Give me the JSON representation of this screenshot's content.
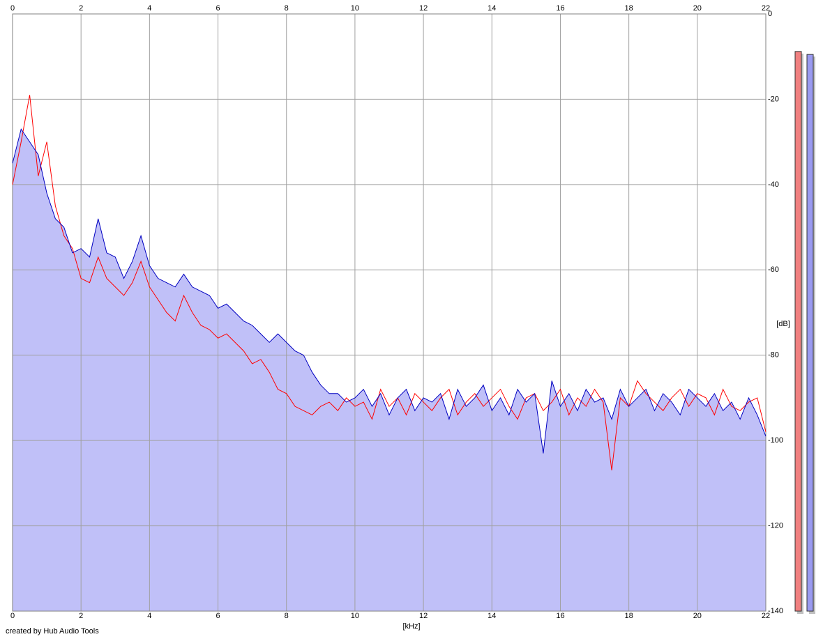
{
  "chart_data": {
    "type": "line",
    "x_label": "[kHz]",
    "y_label": "[dB]",
    "footer": "created by Hub Audio Tools",
    "xlim": [
      0,
      22
    ],
    "xticks": [
      0,
      2,
      4,
      6,
      8,
      10,
      12,
      14,
      16,
      18,
      20,
      22
    ],
    "ylim": [
      -140,
      0
    ],
    "yticks": [
      0,
      -20,
      -40,
      -60,
      -80,
      -100,
      -120,
      -140
    ],
    "grid": true,
    "area_color": "#c0c0f8",
    "x": [
      0,
      0.25,
      0.5,
      0.75,
      1,
      1.25,
      1.5,
      1.75,
      2,
      2.25,
      2.5,
      2.75,
      3,
      3.25,
      3.5,
      3.75,
      4,
      4.25,
      4.5,
      4.75,
      5,
      5.25,
      5.5,
      5.75,
      6,
      6.25,
      6.5,
      6.75,
      7,
      7.25,
      7.5,
      7.75,
      8,
      8.25,
      8.5,
      8.75,
      9,
      9.25,
      9.5,
      9.75,
      10,
      10.25,
      10.5,
      10.75,
      11,
      11.25,
      11.5,
      11.75,
      12,
      12.25,
      12.5,
      12.75,
      13,
      13.25,
      13.5,
      13.75,
      14,
      14.25,
      14.5,
      14.75,
      15,
      15.25,
      15.5,
      15.75,
      16,
      16.25,
      16.5,
      16.75,
      17,
      17.25,
      17.5,
      17.75,
      18,
      18.25,
      18.5,
      18.75,
      19,
      19.25,
      19.5,
      19.75,
      20,
      20.25,
      20.5,
      20.75,
      21,
      21.25,
      21.5,
      21.75,
      22
    ],
    "series": [
      {
        "color": "#0000c0",
        "values": [
          -35,
          -27,
          -30,
          -33,
          -42,
          -48,
          -50,
          -56,
          -55,
          -57,
          -48,
          -56,
          -57,
          -62,
          -58,
          -52,
          -59,
          -62,
          -63,
          -64,
          -61,
          -64,
          -65,
          -66,
          -69,
          -68,
          -70,
          -72,
          -73,
          -75,
          -77,
          -75,
          -77,
          -79,
          -80,
          -84,
          -87,
          -89,
          -89,
          -91,
          -90,
          -88,
          -92,
          -89,
          -94,
          -90,
          -88,
          -93,
          -90,
          -91,
          -89,
          -95,
          -88,
          -92,
          -90,
          -87,
          -93,
          -90,
          -94,
          -88,
          -91,
          -89,
          -103,
          -86,
          -92,
          -89,
          -93,
          -88,
          -91,
          -90,
          -95,
          -88,
          -92,
          -90,
          -88,
          -93,
          -89,
          -91,
          -94,
          -88,
          -90,
          -92,
          -89,
          -93,
          -91,
          -95,
          -90,
          -94,
          -99
        ]
      },
      {
        "color": "#ff0000",
        "values": [
          -40,
          -30,
          -19,
          -38,
          -30,
          -45,
          -52,
          -55,
          -62,
          -63,
          -57,
          -62,
          -64,
          -66,
          -63,
          -58,
          -64,
          -67,
          -70,
          -72,
          -66,
          -70,
          -73,
          -74,
          -76,
          -75,
          -77,
          -79,
          -82,
          -81,
          -84,
          -88,
          -89,
          -92,
          -93,
          -94,
          -92,
          -91,
          -93,
          -90,
          -92,
          -91,
          -95,
          -88,
          -92,
          -90,
          -94,
          -89,
          -91,
          -93,
          -90,
          -88,
          -94,
          -91,
          -89,
          -92,
          -90,
          -88,
          -92,
          -95,
          -90,
          -89,
          -93,
          -91,
          -88,
          -94,
          -90,
          -92,
          -88,
          -91,
          -107,
          -90,
          -92,
          -86,
          -89,
          -91,
          -93,
          -90,
          -88,
          -92,
          -89,
          -90,
          -94,
          -88,
          -92,
          -93,
          -91,
          -90,
          -98
        ]
      }
    ],
    "meters": [
      {
        "color": "#f08080",
        "value": -8.8
      },
      {
        "color": "#9a9af0",
        "value": -9.5
      }
    ]
  }
}
